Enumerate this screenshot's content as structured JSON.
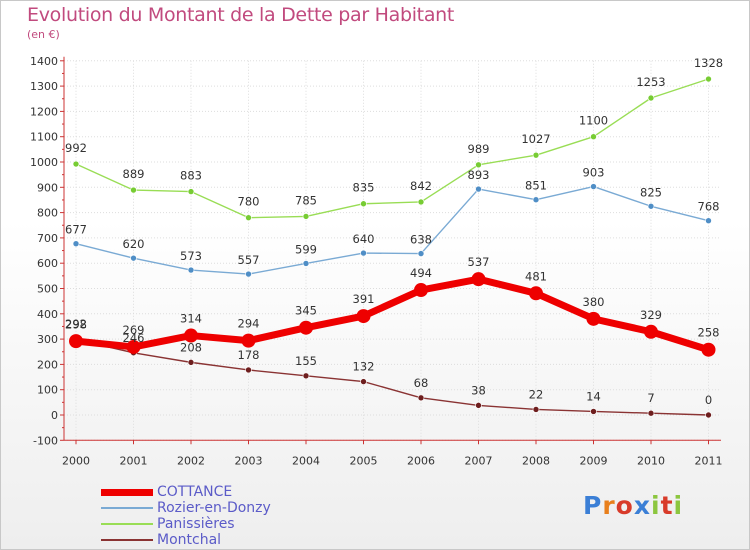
{
  "chart_data": {
    "type": "line",
    "title": "Evolution du Montant de la Dette par Habitant",
    "subtitle": "(en €)",
    "categories": [
      "2000",
      "2001",
      "2002",
      "2003",
      "2004",
      "2005",
      "2006",
      "2007",
      "2008",
      "2009",
      "2010",
      "2011"
    ],
    "ylim": [
      -100,
      1400
    ],
    "yticks": [
      -100,
      0,
      100,
      200,
      300,
      400,
      500,
      600,
      700,
      800,
      900,
      1000,
      1100,
      1200,
      1300,
      1400
    ],
    "grid": true,
    "legend_position": "bottom-left",
    "series": [
      {
        "name": "Panissières",
        "color": "#99dd55",
        "dot": "#77cc33",
        "values": [
          992,
          889,
          883,
          780,
          785,
          835,
          842,
          989,
          1027,
          1100,
          1253,
          1328
        ]
      },
      {
        "name": "Rozier-en-Donzy",
        "color": "#7aaad4",
        "dot": "#4f8ec6",
        "values": [
          677,
          620,
          573,
          557,
          599,
          640,
          638,
          893,
          851,
          903,
          825,
          768
        ]
      },
      {
        "name": "Montchal",
        "color": "#8a3333",
        "dot": "#6e1e1e",
        "values": [
          298,
          246,
          208,
          178,
          155,
          132,
          68,
          38,
          22,
          14,
          7,
          0
        ]
      },
      {
        "name": "COTTANCE",
        "color": "#ee0000",
        "dot": "#ee0000",
        "values": [
          292,
          269,
          314,
          294,
          345,
          391,
          494,
          537,
          481,
          380,
          329,
          258
        ]
      }
    ]
  },
  "legend": {
    "items": [
      "COTTANCE",
      "Rozier-en-Donzy",
      "Panissières",
      "Montchal"
    ]
  },
  "logo": {
    "text": "Proxiti"
  }
}
